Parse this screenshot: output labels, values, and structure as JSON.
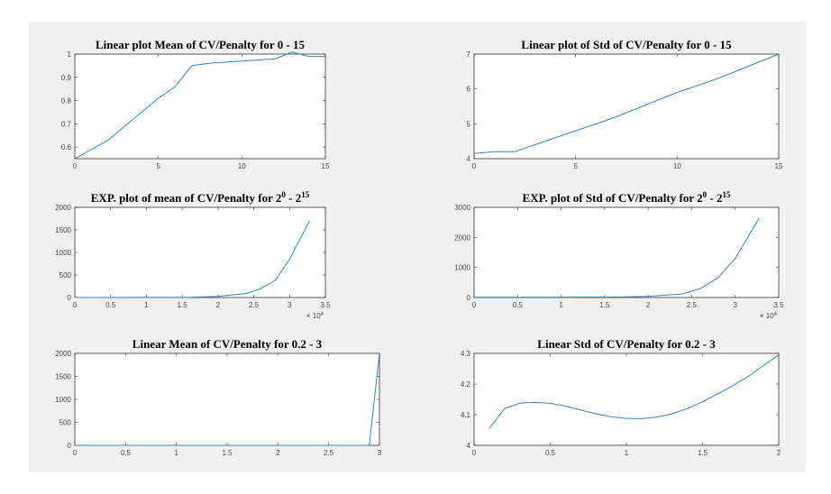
{
  "colors": {
    "figure_bg": "#f0f0f0",
    "axes_bg": "#ffffff",
    "line": "#2e86c8"
  },
  "chart_data": [
    {
      "type": "line",
      "title": "Linear plot Mean of CV/Penalty for 0 - 15",
      "xlim": [
        0,
        15
      ],
      "ylim": [
        0.55,
        1.0
      ],
      "xticks": [
        0,
        5,
        10,
        15
      ],
      "xticklabels": [
        "0",
        "5",
        "10",
        "15"
      ],
      "yticks": [
        0.6,
        0.7,
        0.8,
        0.9,
        1.0
      ],
      "yticklabels": [
        "0.6",
        "0.7",
        "0.8",
        "0.9",
        "1"
      ],
      "x": [
        0,
        2,
        4,
        5,
        6,
        7,
        8,
        10,
        12,
        13,
        14,
        15
      ],
      "y": [
        0.55,
        0.63,
        0.75,
        0.81,
        0.86,
        0.95,
        0.96,
        0.97,
        0.98,
        1.01,
        0.99,
        0.99
      ]
    },
    {
      "type": "line",
      "title": "Linear plot of Std of CV/Penalty for 0 - 15",
      "xlim": [
        0,
        15
      ],
      "ylim": [
        4,
        7
      ],
      "xticks": [
        0,
        5,
        10,
        15
      ],
      "xticklabels": [
        "0",
        "5",
        "10",
        "15"
      ],
      "yticks": [
        4,
        5,
        6,
        7
      ],
      "yticklabels": [
        "4",
        "5",
        "6",
        "7"
      ],
      "x": [
        0,
        1,
        2,
        3,
        5,
        7,
        10,
        12,
        15
      ],
      "y": [
        4.15,
        4.2,
        4.2,
        4.4,
        4.8,
        5.2,
        5.9,
        6.3,
        7.0
      ]
    },
    {
      "type": "line",
      "title": "EXP. plot of mean of CV/Penalty for 2",
      "title_sup_a": "0",
      "title_mid": " - 2",
      "title_sup_b": "15",
      "xlim": [
        0,
        35000
      ],
      "ylim": [
        0,
        2000
      ],
      "xticks": [
        0,
        5000,
        10000,
        15000,
        20000,
        25000,
        30000,
        35000
      ],
      "xticklabels": [
        "0",
        "0.5",
        "1",
        "1.5",
        "2",
        "2.5",
        "3",
        "3.5"
      ],
      "x_multiplier": "× 10",
      "x_multiplier_exp": "4",
      "yticks": [
        0,
        500,
        1000,
        1500,
        2000
      ],
      "yticklabels": [
        "0",
        "500",
        "1000",
        "1500",
        "2000"
      ],
      "x": [
        1,
        2,
        4,
        8,
        16,
        32,
        64,
        128,
        256,
        512,
        1024,
        2048,
        4096,
        8192,
        16384,
        20000,
        24000,
        26000,
        28000,
        30000,
        32768
      ],
      "y": [
        0,
        0,
        0,
        0,
        0,
        0,
        0,
        0,
        0,
        0,
        0,
        0,
        0,
        1,
        5,
        25,
        90,
        200,
        380,
        850,
        1700
      ]
    },
    {
      "type": "line",
      "title": "EXP. plot of Std of CV/Penalty for 2",
      "title_sup_a": "0",
      "title_mid": " - 2",
      "title_sup_b": "15",
      "xlim": [
        0,
        35000
      ],
      "ylim": [
        0,
        3000
      ],
      "xticks": [
        0,
        5000,
        10000,
        15000,
        20000,
        25000,
        30000,
        35000
      ],
      "xticklabels": [
        "0",
        "0.5",
        "1",
        "1.5",
        "2",
        "2.5",
        "3",
        "3.5"
      ],
      "x_multiplier": "× 10",
      "x_multiplier_exp": "4",
      "yticks": [
        0,
        1000,
        2000,
        3000
      ],
      "yticklabels": [
        "0",
        "1000",
        "2000",
        "3000"
      ],
      "x": [
        1,
        2,
        4,
        8,
        16,
        32,
        64,
        128,
        256,
        512,
        1024,
        2048,
        4096,
        8192,
        16384,
        20000,
        24000,
        26000,
        28000,
        30000,
        32768
      ],
      "y": [
        4,
        4,
        4,
        4,
        4,
        4,
        5,
        5,
        5,
        5,
        5,
        6,
        7,
        9,
        15,
        40,
        120,
        300,
        650,
        1300,
        2650
      ]
    },
    {
      "type": "line",
      "title": "Linear Mean of CV/Penalty for 0.2 - 3",
      "xlim": [
        0,
        3
      ],
      "ylim": [
        0,
        2000
      ],
      "xticks": [
        0,
        0.5,
        1,
        1.5,
        2,
        2.5,
        3
      ],
      "xticklabels": [
        "0",
        "0.5",
        "1",
        "1.5",
        "2",
        "2.5",
        "3"
      ],
      "yticks": [
        0,
        500,
        1000,
        1500,
        2000
      ],
      "yticklabels": [
        "0",
        "500",
        "1000",
        "1500",
        "2000"
      ],
      "x": [
        0,
        0.5,
        1,
        1.5,
        2,
        2.5,
        2.9,
        3.0
      ],
      "y": [
        0,
        0,
        0,
        0,
        0,
        0,
        0,
        2000
      ]
    },
    {
      "type": "line",
      "title": "Linear Std of CV/Penalty for 0.2 - 3",
      "xlim": [
        0,
        2
      ],
      "ylim": [
        4,
        4.3
      ],
      "xticks": [
        0,
        0.5,
        1,
        1.5,
        2
      ],
      "xticklabels": [
        "0",
        "0.5",
        "1",
        "1.5",
        "2"
      ],
      "yticks": [
        4,
        4.1,
        4.2,
        4.3
      ],
      "yticklabels": [
        "4",
        "4.1",
        "4.2",
        "4.3"
      ],
      "x": [
        0.1,
        0.2,
        0.3,
        0.4,
        0.5,
        0.6,
        0.7,
        0.8,
        0.9,
        1.0,
        1.1,
        1.2,
        1.3,
        1.4,
        1.5,
        1.6,
        1.7,
        1.8,
        1.9,
        2.0
      ],
      "y": [
        4.055,
        4.12,
        4.138,
        4.14,
        4.137,
        4.128,
        4.115,
        4.103,
        4.093,
        4.088,
        4.087,
        4.092,
        4.103,
        4.12,
        4.142,
        4.168,
        4.195,
        4.225,
        4.26,
        4.295
      ]
    }
  ]
}
